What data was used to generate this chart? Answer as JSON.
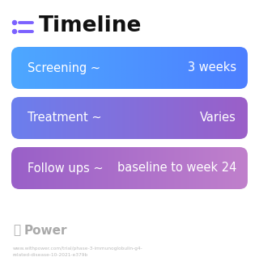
{
  "title": "Timeline",
  "title_icon_color": "#7B61FF",
  "background_color": "#ffffff",
  "rows": [
    {
      "label": "Screening ~",
      "value": "3 weeks",
      "color_left": "#4DA8FF",
      "color_right": "#4D7FFF"
    },
    {
      "label": "Treatment ~",
      "value": "Varies",
      "color_left": "#6B7FEE",
      "color_right": "#9B5FC8"
    },
    {
      "label": "Follow ups ~",
      "value": "baseline to week 24",
      "color_left": "#9960C8",
      "color_right": "#C080CC"
    }
  ],
  "watermark": "Power",
  "url": "www.withpower.com/trial/phase-3-immunoglobulin-g4-related-disease-10-2021-e379b",
  "url_color": "#bbbbbb",
  "watermark_color": "#aaaaaa",
  "fig_width": 3.2,
  "fig_height": 3.39,
  "dpi": 100
}
